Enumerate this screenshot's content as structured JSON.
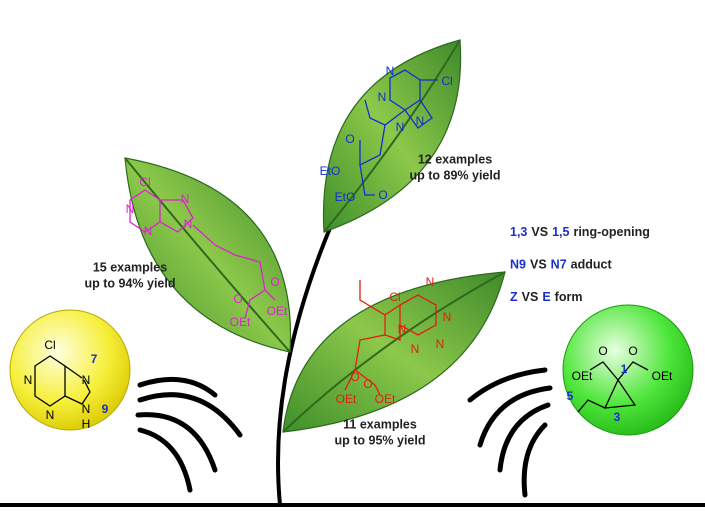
{
  "leaves": [
    {
      "examples": "15 examples",
      "yield": "up to 94% yield",
      "atoms": [
        "Cl",
        "N",
        "N",
        "N",
        "N",
        "O",
        "O",
        "OEt",
        "OEt"
      ]
    },
    {
      "examples": "12 examples",
      "yield": "up to 89% yield",
      "atoms": [
        "N",
        "N",
        "Cl",
        "N",
        "N",
        "O",
        "EtO",
        "EtO",
        "O"
      ]
    },
    {
      "examples": "11 examples",
      "yield": "up to 95% yield",
      "atoms": [
        "Cl",
        "N",
        "N",
        "N",
        "N",
        "N",
        "O",
        "O",
        "OEt",
        "OEt"
      ]
    }
  ],
  "purine": {
    "atoms": [
      "Cl",
      "N",
      "N",
      "N",
      "N",
      "H"
    ],
    "numbers": [
      "7",
      "9"
    ]
  },
  "cyclopropane": {
    "atoms": [
      "O",
      "O",
      "OEt",
      "OEt"
    ],
    "numbers": [
      "1",
      "3",
      "5"
    ]
  },
  "conditions": [
    [
      "1,3",
      "VS",
      "1,5",
      "ring-opening"
    ],
    [
      "N9",
      "VS",
      "N7",
      "adduct"
    ],
    [
      "Z",
      "VS",
      "E",
      "form"
    ]
  ]
}
